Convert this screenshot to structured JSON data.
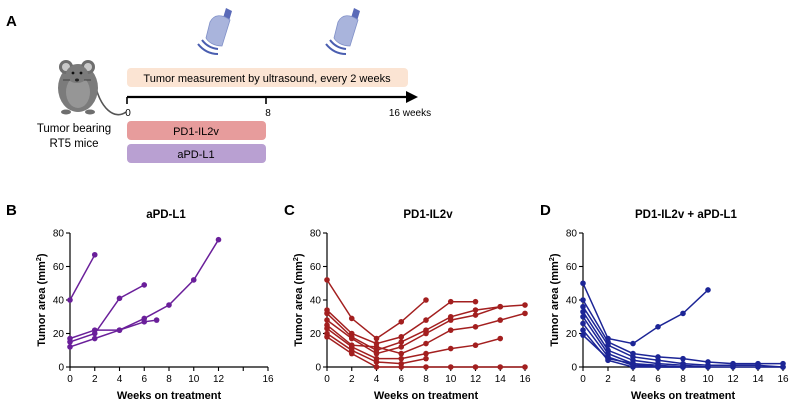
{
  "panel_a": {
    "letter": "A",
    "mouse_label_line1": "Tumor bearing",
    "mouse_label_line2": "RT5 mice",
    "measurement_label": "Tumor measurement by ultrasound, every 2 weeks",
    "timeline": {
      "start_label": "0",
      "mid_label": "8",
      "end_label": "16 weeks"
    },
    "treatments": [
      {
        "label": "PD1-IL2v",
        "color": "#e79c9c"
      },
      {
        "label": "aPD-L1",
        "color": "#b9a0d2"
      }
    ],
    "colors": {
      "measurement_bar": "#fbe4d3",
      "probe": "#a9b4dc",
      "wave": "#4a5eb0"
    }
  },
  "chart_data": [
    {
      "letter": "B",
      "type": "line",
      "title": "aPD-L1",
      "xlabel": "Weeks on treatment",
      "ylabel_main": "Tumor area (mm",
      "ylabel_sup": "2",
      "ylabel_end": ")",
      "xlim": [
        0,
        16
      ],
      "ylim": [
        0,
        80
      ],
      "xticks": [
        "0",
        "2",
        "4",
        "6",
        "8",
        "10",
        "12",
        "16"
      ],
      "yticks": [
        "0",
        "20",
        "40",
        "60",
        "80"
      ],
      "xtick_values": [
        0,
        2,
        4,
        6,
        8,
        10,
        12,
        14,
        16
      ],
      "xtick_label_values": [
        0,
        2,
        4,
        6,
        8,
        10,
        12,
        16
      ],
      "ytick_values": [
        0,
        20,
        40,
        60,
        80
      ],
      "color": "#6a1f9a",
      "series": [
        {
          "points": [
            [
              0,
              40
            ],
            [
              2,
              67
            ]
          ]
        },
        {
          "points": [
            [
              0,
              15
            ],
            [
              2,
              20
            ],
            [
              4,
              41
            ],
            [
              6,
              49
            ]
          ]
        },
        {
          "points": [
            [
              0,
              12
            ],
            [
              2,
              17
            ],
            [
              4,
              22
            ],
            [
              6,
              27
            ],
            [
              7,
              28
            ]
          ]
        },
        {
          "points": [
            [
              0,
              17
            ],
            [
              2,
              22
            ],
            [
              4,
              22
            ],
            [
              6,
              29
            ],
            [
              8,
              37
            ],
            [
              10,
              52
            ],
            [
              12,
              76
            ]
          ]
        }
      ]
    },
    {
      "letter": "C",
      "type": "line",
      "title": "PD1-IL2v",
      "xlabel": "Weeks on treatment",
      "ylabel_main": "Tumor area (mm",
      "ylabel_sup": "2",
      "ylabel_end": ")",
      "xlim": [
        0,
        16
      ],
      "ylim": [
        0,
        80
      ],
      "xticks": [
        "0",
        "2",
        "4",
        "6",
        "8",
        "10",
        "12",
        "14",
        "16"
      ],
      "yticks": [
        "0",
        "20",
        "40",
        "60",
        "80"
      ],
      "xtick_values": [
        0,
        2,
        4,
        6,
        8,
        10,
        12,
        14,
        16
      ],
      "xtick_label_values": [
        0,
        2,
        4,
        6,
        8,
        10,
        12,
        14,
        16
      ],
      "ytick_values": [
        0,
        20,
        40,
        60,
        80
      ],
      "color": "#a31f1f",
      "series": [
        {
          "points": [
            [
              0,
              52
            ],
            [
              2,
              29
            ],
            [
              4,
              17
            ],
            [
              6,
              27
            ],
            [
              8,
              40
            ]
          ]
        },
        {
          "points": [
            [
              0,
              34
            ],
            [
              2,
              20
            ],
            [
              4,
              14
            ],
            [
              6,
              18
            ],
            [
              8,
              28
            ],
            [
              10,
              39
            ],
            [
              12,
              39
            ]
          ]
        },
        {
          "points": [
            [
              0,
              32
            ],
            [
              2,
              18
            ],
            [
              4,
              10
            ],
            [
              6,
              15
            ],
            [
              8,
              22
            ],
            [
              10,
              30
            ],
            [
              12,
              34
            ],
            [
              14,
              36
            ]
          ]
        },
        {
          "points": [
            [
              0,
              28
            ],
            [
              2,
              17
            ],
            [
              4,
              8
            ],
            [
              6,
              12
            ],
            [
              8,
              20
            ],
            [
              10,
              28
            ],
            [
              12,
              31
            ],
            [
              14,
              36
            ],
            [
              16,
              37
            ]
          ]
        },
        {
          "points": [
            [
              0,
              25
            ],
            [
              2,
              13
            ],
            [
              4,
              12
            ],
            [
              6,
              8
            ],
            [
              8,
              14
            ],
            [
              10,
              22
            ],
            [
              12,
              24
            ],
            [
              14,
              28
            ],
            [
              16,
              32
            ]
          ]
        },
        {
          "points": [
            [
              0,
              23
            ],
            [
              2,
              12
            ],
            [
              4,
              5
            ],
            [
              6,
              5
            ],
            [
              8,
              8
            ],
            [
              10,
              11
            ],
            [
              12,
              13
            ],
            [
              14,
              17
            ]
          ]
        },
        {
          "points": [
            [
              0,
              20
            ],
            [
              2,
              10
            ],
            [
              4,
              3
            ],
            [
              6,
              2
            ],
            [
              8,
              5
            ]
          ]
        },
        {
          "points": [
            [
              0,
              18
            ],
            [
              2,
              8
            ],
            [
              4,
              0
            ],
            [
              6,
              0
            ],
            [
              8,
              0
            ],
            [
              10,
              0
            ],
            [
              12,
              0
            ],
            [
              14,
              0
            ],
            [
              16,
              0
            ]
          ]
        }
      ]
    },
    {
      "letter": "D",
      "type": "line",
      "title": "PD1-IL2v + aPD-L1",
      "xlabel": "Weeks on treatment",
      "ylabel_main": "Tumor area (mm",
      "ylabel_sup": "2",
      "ylabel_end": ")",
      "xlim": [
        0,
        16
      ],
      "ylim": [
        0,
        80
      ],
      "xticks": [
        "0",
        "2",
        "4",
        "6",
        "8",
        "10",
        "12",
        "14",
        "16"
      ],
      "yticks": [
        "0",
        "20",
        "40",
        "60",
        "80"
      ],
      "xtick_values": [
        0,
        2,
        4,
        6,
        8,
        10,
        12,
        14,
        16
      ],
      "xtick_label_values": [
        0,
        2,
        4,
        6,
        8,
        10,
        12,
        14,
        16
      ],
      "ytick_values": [
        0,
        20,
        40,
        60,
        80
      ],
      "color": "#1c2596",
      "series": [
        {
          "points": [
            [
              0,
              50
            ],
            [
              2,
              17
            ],
            [
              4,
              14
            ],
            [
              6,
              24
            ],
            [
              8,
              32
            ],
            [
              10,
              46
            ]
          ]
        },
        {
          "points": [
            [
              0,
              40
            ],
            [
              2,
              15
            ],
            [
              4,
              8
            ],
            [
              6,
              6
            ],
            [
              8,
              5
            ],
            [
              10,
              3
            ],
            [
              12,
              2
            ],
            [
              14,
              2
            ],
            [
              16,
              2
            ]
          ]
        },
        {
          "points": [
            [
              0,
              36
            ],
            [
              2,
              13
            ],
            [
              4,
              6
            ],
            [
              6,
              4
            ],
            [
              8,
              2
            ],
            [
              10,
              1
            ],
            [
              12,
              1
            ],
            [
              14,
              1
            ],
            [
              16,
              0
            ]
          ]
        },
        {
          "points": [
            [
              0,
              33
            ],
            [
              2,
              10
            ],
            [
              4,
              4
            ],
            [
              6,
              2
            ],
            [
              8,
              1
            ],
            [
              10,
              0
            ]
          ]
        },
        {
          "points": [
            [
              0,
              30
            ],
            [
              2,
              8
            ],
            [
              4,
              2
            ],
            [
              6,
              1
            ],
            [
              8,
              0
            ],
            [
              10,
              0
            ],
            [
              12,
              0
            ],
            [
              14,
              0
            ],
            [
              16,
              0
            ]
          ]
        },
        {
          "points": [
            [
              0,
              26
            ],
            [
              2,
              6
            ],
            [
              4,
              1
            ],
            [
              6,
              0
            ],
            [
              8,
              0
            ]
          ]
        },
        {
          "points": [
            [
              0,
              22
            ],
            [
              2,
              4
            ],
            [
              4,
              0
            ],
            [
              6,
              0
            ]
          ]
        },
        {
          "points": [
            [
              0,
              19
            ],
            [
              2,
              5
            ],
            [
              4,
              2
            ],
            [
              6,
              0
            ],
            [
              8,
              0
            ]
          ]
        }
      ]
    }
  ]
}
